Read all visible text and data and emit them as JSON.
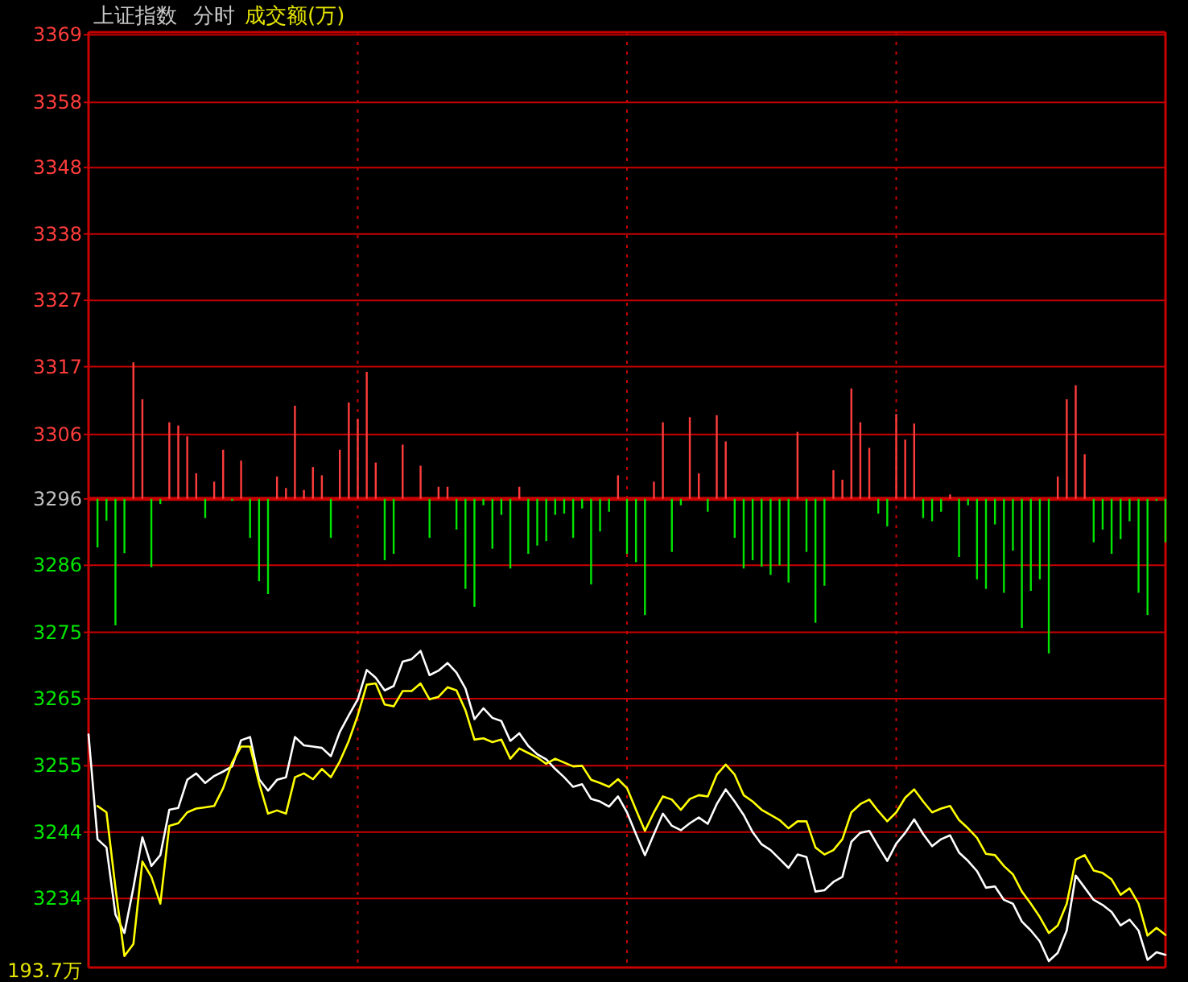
{
  "chart_data": {
    "type": "bar",
    "title": "上证指数",
    "subtitle": "分时",
    "annotations": [
      "成交额(万)",
      "193.7万"
    ],
    "categories": [
      null,
      null,
      null,
      null,
      null,
      null,
      null,
      null,
      null,
      null,
      null,
      null,
      null,
      null,
      null,
      null,
      null,
      null,
      null,
      null,
      null,
      null,
      null,
      null,
      null,
      null,
      null,
      null,
      null,
      null,
      null,
      null,
      null,
      null,
      null,
      null,
      null,
      null,
      null,
      null,
      null,
      null,
      null,
      null,
      null,
      null,
      null,
      null,
      null,
      null,
      null,
      null,
      null,
      null,
      null,
      null,
      null,
      null,
      null,
      null,
      null,
      null,
      null,
      null,
      null,
      null,
      null,
      null,
      null,
      null,
      null,
      null,
      null,
      null,
      null,
      null,
      null,
      null,
      null,
      null,
      null,
      null,
      null,
      null,
      null,
      null,
      null,
      null,
      null,
      null,
      null,
      null,
      null,
      null,
      null,
      null,
      null,
      null,
      null,
      null,
      null,
      null,
      null,
      null,
      null,
      null,
      null,
      null,
      null,
      null,
      null,
      null,
      null,
      null,
      null,
      null,
      null,
      null,
      null,
      null,
      null
    ],
    "ylim": [
      3222.9,
      3369.4
    ],
    "yticks": [
      {
        "value": 3369,
        "label": "3369"
      },
      {
        "value": 3358.4,
        "label": "3358"
      },
      {
        "value": 3348.2,
        "label": "3348"
      },
      {
        "value": 3337.8,
        "label": "3338"
      },
      {
        "value": 3327.4,
        "label": "3327"
      },
      {
        "value": 3317,
        "label": "3317"
      },
      {
        "value": 3306.4,
        "label": "3306"
      },
      {
        "value": 3296.3,
        "label": "3296"
      },
      {
        "value": 3285.9,
        "label": "3286"
      },
      {
        "value": 3275.4,
        "label": "3275"
      },
      {
        "value": 3265,
        "label": "3265"
      },
      {
        "value": 3254.5,
        "label": "3255"
      },
      {
        "value": 3244.1,
        "label": "3244"
      },
      {
        "value": 3233.7,
        "label": "3234"
      }
    ],
    "grid": true,
    "tick_labels": "y",
    "ref_lines": [
      {
        "axis": "y",
        "value": 3296.3,
        "color": "#c80000"
      }
    ],
    "series": [
      {
        "base": [
          null,
          3296.3,
          3296.3,
          3296.3,
          3296.3,
          3296.3,
          3296.3,
          3296.3,
          3296.3,
          3296.3,
          3296.3,
          3296.3,
          3296.3,
          3296.3,
          3296.3,
          3296.3,
          3296.3,
          3296.3,
          3296.3,
          3296.3,
          3296.3,
          3296.3,
          3296.3,
          3296.3,
          3296.3,
          3296.3,
          3296.3,
          3296.3,
          3296.3,
          3296.3,
          3296.3,
          3296.3,
          3296.3,
          3296.3,
          3296.3,
          3296.3,
          null,
          3296.3,
          3296.3,
          3296.3,
          3296.3,
          3296.3,
          3296.3,
          3296.3,
          3296.3,
          3296.3,
          3296.3,
          3296.3,
          3296.3,
          3296.3,
          3296.3,
          3296.3,
          3296.3,
          3296.3,
          3296.3,
          3296.3,
          3296.3,
          3296.3,
          3296.3,
          3296.3,
          3296.3,
          3296.3,
          3296.3,
          3296.3,
          3296.3,
          3296.3,
          3296.3,
          3296.3,
          3296.3,
          3296.3,
          3296.3,
          3296.3,
          3296.3,
          3296.3,
          3296.3,
          3296.3,
          3296.3,
          3296.3,
          3296.3,
          3296.3,
          3296.3,
          3296.3,
          3296.3,
          3296.3,
          3296.3,
          3296.3,
          3296.3,
          3296.3,
          3296.3,
          3296.3,
          3296.3,
          3296.3,
          3296.3,
          3296.3,
          3296.3,
          3296.3,
          3296.3,
          3296.3,
          3296.3,
          3296.3,
          3296.3,
          3296.3,
          3296.3,
          3296.3,
          3296.3,
          3296.3,
          3296.3,
          3296.3,
          3296.3,
          3296.3,
          3296.3,
          3296.3,
          3296.3,
          3296.3,
          3296.3,
          3296.3,
          3296.3,
          3296.3,
          3296.3,
          3296.3,
          3296.3
        ],
        "values": [
          null,
          -7.6,
          -3.4,
          -19.8,
          -8.5,
          21.4,
          15.6,
          -10.7,
          -0.8,
          12.0,
          11.5,
          9.8,
          4.0,
          -3.0,
          2.7,
          7.7,
          -0.3,
          6.0,
          -6.1,
          -12.9,
          -14.9,
          3.5,
          1.7,
          14.6,
          1.4,
          5.0,
          3.7,
          -6.1,
          7.7,
          15.1,
          12.5,
          19.9,
          5.7,
          -9.6,
          -8.6,
          8.5,
          null,
          5.2,
          -6.1,
          1.9,
          1.9,
          -4.8,
          -14.1,
          -16.9,
          -1.0,
          -7.8,
          -2.5,
          -10.9,
          1.9,
          -8.6,
          -7.3,
          -6.6,
          -2.5,
          -2.3,
          -6.1,
          -1.5,
          -13.4,
          -5.1,
          -2.0,
          3.7,
          -8.6,
          -9.9,
          -18.2,
          2.7,
          12.0,
          -8.3,
          -1.0,
          12.8,
          4.0,
          -2.0,
          13.1,
          9.0,
          -6.1,
          -10.9,
          -9.6,
          -10.6,
          -11.9,
          -10.4,
          -13.1,
          10.5,
          -8.3,
          -19.4,
          -13.6,
          4.5,
          3.0,
          17.3,
          12.0,
          8.0,
          -2.3,
          -4.3,
          13.3,
          9.3,
          11.8,
          -3.0,
          -3.5,
          -2.0,
          0.7,
          -9.1,
          -1.0,
          -12.6,
          -14.1,
          -4.0,
          -14.7,
          -8.1,
          -20.2,
          -14.4,
          -12.6,
          -24.2,
          3.5,
          15.6,
          17.8,
          7.0,
          -6.8,
          -4.8,
          -8.6,
          -6.3,
          -3.5,
          -14.7,
          -18.2,
          -0.3,
          -6.8
        ],
        "colors": [
          null,
          "#00e600",
          "#00e600",
          "#00e600",
          "#00e600",
          "#ff3c3c",
          "#ff3c3c",
          "#00e600",
          "#00e600",
          "#ff3c3c",
          "#ff3c3c",
          "#ff3c3c",
          "#ff3c3c",
          "#00e600",
          "#ff3c3c",
          "#ff3c3c",
          "#00e600",
          "#ff3c3c",
          "#00e600",
          "#00e600",
          "#00e600",
          "#ff3c3c",
          "#ff3c3c",
          "#ff3c3c",
          "#ff3c3c",
          "#ff3c3c",
          "#ff3c3c",
          "#00e600",
          "#ff3c3c",
          "#ff3c3c",
          "#ff3c3c",
          "#ff3c3c",
          "#ff3c3c",
          "#00e600",
          "#00e600",
          "#ff3c3c",
          null,
          "#ff3c3c",
          "#00e600",
          "#ff3c3c",
          "#ff3c3c",
          "#00e600",
          "#00e600",
          "#00e600",
          "#00e600",
          "#00e600",
          "#00e600",
          "#00e600",
          "#ff3c3c",
          "#00e600",
          "#00e600",
          "#00e600",
          "#00e600",
          "#00e600",
          "#00e600",
          "#00e600",
          "#00e600",
          "#00e600",
          "#00e600",
          "#ff3c3c",
          "#00e600",
          "#00e600",
          "#00e600",
          "#ff3c3c",
          "#ff3c3c",
          "#00e600",
          "#00e600",
          "#ff3c3c",
          "#ff3c3c",
          "#00e600",
          "#ff3c3c",
          "#ff3c3c",
          "#00e600",
          "#00e600",
          "#00e600",
          "#00e600",
          "#00e600",
          "#00e600",
          "#00e600",
          "#ff3c3c",
          "#00e600",
          "#00e600",
          "#00e600",
          "#ff3c3c",
          "#ff3c3c",
          "#ff3c3c",
          "#ff3c3c",
          "#ff3c3c",
          "#00e600",
          "#00e600",
          "#ff3c3c",
          "#ff3c3c",
          "#ff3c3c",
          "#00e600",
          "#00e600",
          "#00e600",
          "#ff3c3c",
          "#00e600",
          "#00e600",
          "#00e600",
          "#00e600",
          "#00e600",
          "#00e600",
          "#00e600",
          "#00e600",
          "#00e600",
          "#00e600",
          "#00e600",
          "#ff3c3c",
          "#ff3c3c",
          "#ff3c3c",
          "#ff3c3c",
          "#00e600",
          "#00e600",
          "#00e600",
          "#00e600",
          "#00e600",
          "#00e600",
          "#00e600",
          "#00e600",
          "#00e600"
        ]
      },
      {
        "type": "line",
        "color": "#ffffff",
        "values": [
          3259.4,
          3243.0,
          3241.7,
          3231.2,
          3228.3,
          3235.4,
          3243.3,
          3238.8,
          3240.5,
          3247.6,
          3247.9,
          3252.3,
          3253.3,
          3251.8,
          3252.9,
          3253.6,
          3254.4,
          3258.5,
          3259.0,
          3252.4,
          3250.6,
          3252.3,
          3252.7,
          3259.0,
          3257.7,
          3257.5,
          3257.3,
          3256.0,
          3259.8,
          3262.4,
          3264.9,
          3269.5,
          3268.3,
          3266.3,
          3267.0,
          3270.8,
          3271.2,
          3272.5,
          3268.7,
          3269.4,
          3270.6,
          3269.1,
          3266.6,
          3261.8,
          3263.5,
          3262.0,
          3261.5,
          3258.4,
          3259.6,
          3257.6,
          3256.3,
          3255.5,
          3254.0,
          3252.7,
          3251.2,
          3251.6,
          3249.3,
          3248.9,
          3248.1,
          3249.7,
          3247.2,
          3243.8,
          3240.5,
          3243.8,
          3247.0,
          3245.1,
          3244.4,
          3245.5,
          3246.4,
          3245.4,
          3248.5,
          3250.8,
          3248.9,
          3246.8,
          3244.1,
          3242.2,
          3241.3,
          3239.9,
          3238.5,
          3240.6,
          3240.2,
          3234.8,
          3235.0,
          3236.3,
          3237.1,
          3242.6,
          3244.0,
          3244.3,
          3241.9,
          3239.6,
          3242.3,
          3244.0,
          3246.1,
          3243.8,
          3241.9,
          3243.0,
          3243.6,
          3240.9,
          3239.6,
          3238.0,
          3235.4,
          3235.6,
          3233.5,
          3232.9,
          3230.1,
          3228.7,
          3227.0,
          3223.9,
          3225.2,
          3228.7,
          3237.3,
          3235.4,
          3233.5,
          3232.7,
          3231.6,
          3229.5,
          3230.4,
          3228.7,
          3224.1,
          3225.3,
          3224.9
        ]
      },
      {
        "type": "line",
        "color": "#ffff00",
        "values": [
          null,
          3248.2,
          3247.2,
          3235.4,
          3224.7,
          3226.6,
          3239.5,
          3237.1,
          3232.9,
          3245.1,
          3245.5,
          3247.2,
          3247.8,
          3248.0,
          3248.2,
          3251.0,
          3255.0,
          3257.5,
          3257.5,
          3251.8,
          3247.0,
          3247.5,
          3247.0,
          3252.7,
          3253.3,
          3252.4,
          3254.0,
          3252.7,
          3255.2,
          3258.4,
          3262.4,
          3267.2,
          3267.4,
          3264.1,
          3263.8,
          3266.2,
          3266.2,
          3267.4,
          3264.9,
          3265.3,
          3266.8,
          3266.3,
          3263.2,
          3258.6,
          3258.8,
          3258.2,
          3258.6,
          3255.6,
          3257.2,
          3256.5,
          3255.8,
          3254.8,
          3255.6,
          3255.0,
          3254.4,
          3254.5,
          3252.3,
          3251.8,
          3251.2,
          3252.4,
          3251.0,
          3247.6,
          3244.3,
          3247.2,
          3249.7,
          3249.2,
          3247.6,
          3249.3,
          3249.9,
          3249.7,
          3253.1,
          3254.7,
          3253.1,
          3249.9,
          3248.9,
          3247.6,
          3246.8,
          3246.0,
          3244.7,
          3245.8,
          3245.8,
          3241.7,
          3240.6,
          3241.3,
          3243.0,
          3247.2,
          3248.5,
          3249.2,
          3247.4,
          3245.8,
          3247.2,
          3249.5,
          3250.8,
          3248.9,
          3247.2,
          3247.8,
          3248.2,
          3246.0,
          3244.7,
          3243.2,
          3240.7,
          3240.5,
          3238.8,
          3237.5,
          3234.8,
          3232.9,
          3230.8,
          3228.3,
          3229.5,
          3232.9,
          3239.8,
          3240.5,
          3238.1,
          3237.7,
          3236.7,
          3234.3,
          3235.3,
          3232.9,
          3227.9,
          3229.1,
          3228.0
        ]
      }
    ]
  }
}
